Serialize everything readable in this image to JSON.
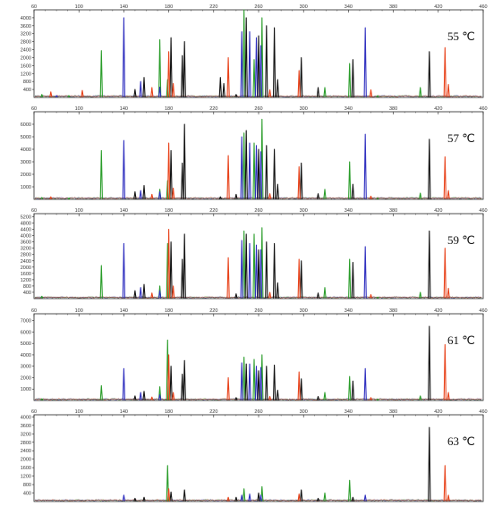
{
  "chart_data": [
    {
      "type": "line",
      "label": "55 ℃",
      "xlim": [
        60,
        460
      ],
      "ylim": [
        0,
        4400
      ],
      "x_ticks": [
        "60",
        "100",
        "140",
        "180",
        "220",
        "260",
        "300",
        "340",
        "380",
        "420",
        "460"
      ],
      "y_ticks": [
        "400",
        "800",
        "1200",
        "1600",
        "2000",
        "2400",
        "2800",
        "3200",
        "3600",
        "4000"
      ],
      "y_tick_values": [
        400,
        800,
        1200,
        1600,
        2000,
        2400,
        2800,
        3200,
        3600,
        4000
      ],
      "series": [
        {
          "color": "#2a9d2a",
          "peaks": [
            [
              67,
              150
            ],
            [
              91,
              90
            ],
            [
              120,
              2350
            ],
            [
              172,
              2900
            ],
            [
              179,
              900
            ],
            [
              247,
              4500
            ],
            [
              256,
              1900
            ],
            [
              263,
              4000
            ],
            [
              319,
              500
            ],
            [
              341,
              1700
            ],
            [
              366,
              90
            ],
            [
              404,
              500
            ]
          ]
        },
        {
          "color": "#2f2fbf",
          "peaks": [
            [
              80,
              90
            ],
            [
              140,
              4000
            ],
            [
              155,
              800
            ],
            [
              172,
              520
            ],
            [
              245,
              3300
            ],
            [
              252,
              3300
            ],
            [
              258,
              3000
            ],
            [
              262,
              2600
            ],
            [
              355,
              3500
            ]
          ]
        },
        {
          "color": "#111111",
          "peaks": [
            [
              150,
              400
            ],
            [
              158,
              1000
            ],
            [
              182,
              3000
            ],
            [
              192,
              2100
            ],
            [
              194,
              2800
            ],
            [
              226,
              1000
            ],
            [
              229,
              700
            ],
            [
              240,
              150
            ],
            [
              249,
              4000
            ],
            [
              260,
              3100
            ],
            [
              267,
              3600
            ],
            [
              274,
              3500
            ],
            [
              277,
              900
            ],
            [
              298,
              2000
            ],
            [
              313,
              500
            ],
            [
              344,
              1900
            ],
            [
              412,
              2300
            ]
          ]
        },
        {
          "color": "#e8421a",
          "peaks": [
            [
              75,
              280
            ],
            [
              103,
              350
            ],
            [
              165,
              500
            ],
            [
              180,
              2300
            ],
            [
              184,
              700
            ],
            [
              233,
              2000
            ],
            [
              270,
              380
            ],
            [
              296,
              1350
            ],
            [
              360,
              380
            ],
            [
              426,
              2500
            ],
            [
              429,
              650
            ]
          ]
        }
      ]
    },
    {
      "type": "line",
      "label": "57 ℃",
      "xlim": [
        60,
        460
      ],
      "ylim": [
        0,
        7000
      ],
      "x_ticks": [
        "60",
        "100",
        "140",
        "180",
        "220",
        "260",
        "300",
        "340",
        "380",
        "420",
        "460"
      ],
      "y_ticks": [
        "1000",
        "2000",
        "3000",
        "4000",
        "5000",
        "6000"
      ],
      "y_tick_values": [
        1000,
        2000,
        3000,
        4000,
        5000,
        6000
      ],
      "series": [
        {
          "color": "#2a9d2a",
          "peaks": [
            [
              67,
              150
            ],
            [
              91,
              80
            ],
            [
              120,
              3900
            ],
            [
              172,
              800
            ],
            [
              179,
              1500
            ],
            [
              247,
              5300
            ],
            [
              256,
              4500
            ],
            [
              263,
              6400
            ],
            [
              319,
              800
            ],
            [
              341,
              3000
            ],
            [
              366,
              90
            ],
            [
              404,
              500
            ]
          ]
        },
        {
          "color": "#2f2fbf",
          "peaks": [
            [
              140,
              4700
            ],
            [
              155,
              700
            ],
            [
              172,
              600
            ],
            [
              245,
              5000
            ],
            [
              252,
              4500
            ],
            [
              258,
              4300
            ],
            [
              262,
              3800
            ],
            [
              355,
              5200
            ]
          ]
        },
        {
          "color": "#111111",
          "peaks": [
            [
              150,
              600
            ],
            [
              158,
              1100
            ],
            [
              182,
              3900
            ],
            [
              192,
              2900
            ],
            [
              194,
              6000
            ],
            [
              226,
              200
            ],
            [
              240,
              400
            ],
            [
              249,
              5500
            ],
            [
              260,
              4000
            ],
            [
              267,
              4300
            ],
            [
              274,
              4000
            ],
            [
              277,
              1200
            ],
            [
              298,
              2900
            ],
            [
              313,
              450
            ],
            [
              344,
              1200
            ],
            [
              412,
              4800
            ]
          ]
        },
        {
          "color": "#e8421a",
          "peaks": [
            [
              75,
              200
            ],
            [
              165,
              400
            ],
            [
              180,
              4500
            ],
            [
              184,
              900
            ],
            [
              233,
              3500
            ],
            [
              270,
              450
            ],
            [
              296,
              2600
            ],
            [
              360,
              250
            ],
            [
              426,
              3400
            ],
            [
              429,
              700
            ]
          ]
        }
      ]
    },
    {
      "type": "line",
      "label": "59 ℃",
      "xlim": [
        60,
        460
      ],
      "ylim": [
        0,
        5400
      ],
      "x_ticks": [
        "60",
        "100",
        "140",
        "180",
        "220",
        "260",
        "300",
        "340",
        "380",
        "420",
        "460"
      ],
      "y_ticks": [
        "400",
        "800",
        "1200",
        "1600",
        "2000",
        "2400",
        "2800",
        "3200",
        "3600",
        "4000",
        "4400",
        "4800",
        "5200"
      ],
      "y_tick_values": [
        400,
        800,
        1200,
        1600,
        2000,
        2400,
        2800,
        3200,
        3600,
        4000,
        4400,
        4800,
        5200
      ],
      "series": [
        {
          "color": "#2a9d2a",
          "peaks": [
            [
              67,
              150
            ],
            [
              120,
              2100
            ],
            [
              172,
              800
            ],
            [
              179,
              3500
            ],
            [
              247,
              4300
            ],
            [
              256,
              4100
            ],
            [
              263,
              4500
            ],
            [
              319,
              700
            ],
            [
              341,
              2500
            ],
            [
              366,
              90
            ],
            [
              404,
              400
            ]
          ]
        },
        {
          "color": "#2f2fbf",
          "peaks": [
            [
              140,
              3500
            ],
            [
              155,
              700
            ],
            [
              172,
              500
            ],
            [
              245,
              3700
            ],
            [
              252,
              3500
            ],
            [
              258,
              3400
            ],
            [
              262,
              3100
            ],
            [
              355,
              3300
            ]
          ]
        },
        {
          "color": "#111111",
          "peaks": [
            [
              150,
              500
            ],
            [
              158,
              900
            ],
            [
              182,
              3600
            ],
            [
              192,
              2500
            ],
            [
              194,
              4100
            ],
            [
              240,
              300
            ],
            [
              249,
              4100
            ],
            [
              260,
              3100
            ],
            [
              267,
              3600
            ],
            [
              274,
              3500
            ],
            [
              277,
              1000
            ],
            [
              298,
              2400
            ],
            [
              313,
              350
            ],
            [
              344,
              2300
            ],
            [
              412,
              4300
            ]
          ]
        },
        {
          "color": "#e8421a",
          "peaks": [
            [
              165,
              350
            ],
            [
              180,
              4400
            ],
            [
              184,
              800
            ],
            [
              233,
              2600
            ],
            [
              270,
              400
            ],
            [
              296,
              2500
            ],
            [
              360,
              250
            ],
            [
              426,
              3200
            ],
            [
              429,
              650
            ]
          ]
        }
      ]
    },
    {
      "type": "line",
      "label": "61 ℃",
      "xlim": [
        60,
        460
      ],
      "ylim": [
        0,
        7600
      ],
      "x_ticks": [
        "60",
        "100",
        "140",
        "180",
        "220",
        "260",
        "300",
        "340",
        "380",
        "420",
        "460"
      ],
      "y_ticks": [
        "1000",
        "2000",
        "3000",
        "4000",
        "5000",
        "6000",
        "7000"
      ],
      "y_tick_values": [
        1000,
        2000,
        3000,
        4000,
        5000,
        6000,
        7000
      ],
      "series": [
        {
          "color": "#2a9d2a",
          "peaks": [
            [
              67,
              150
            ],
            [
              120,
              1300
            ],
            [
              172,
              1200
            ],
            [
              179,
              5300
            ],
            [
              247,
              3800
            ],
            [
              256,
              3600
            ],
            [
              263,
              4000
            ],
            [
              319,
              700
            ],
            [
              341,
              2100
            ],
            [
              366,
              90
            ],
            [
              404,
              400
            ]
          ]
        },
        {
          "color": "#2f2fbf",
          "peaks": [
            [
              140,
              2800
            ],
            [
              155,
              700
            ],
            [
              172,
              500
            ],
            [
              245,
              3300
            ],
            [
              252,
              3200
            ],
            [
              258,
              3000
            ],
            [
              262,
              2900
            ],
            [
              355,
              2800
            ]
          ]
        },
        {
          "color": "#111111",
          "peaks": [
            [
              150,
              400
            ],
            [
              158,
              800
            ],
            [
              182,
              3000
            ],
            [
              192,
              2300
            ],
            [
              194,
              3500
            ],
            [
              240,
              250
            ],
            [
              249,
              3200
            ],
            [
              260,
              2600
            ],
            [
              267,
              3000
            ],
            [
              274,
              3100
            ],
            [
              277,
              900
            ],
            [
              298,
              1900
            ],
            [
              313,
              350
            ],
            [
              344,
              1700
            ],
            [
              412,
              6500
            ]
          ]
        },
        {
          "color": "#e8421a",
          "peaks": [
            [
              165,
              300
            ],
            [
              180,
              4000
            ],
            [
              184,
              700
            ],
            [
              233,
              2000
            ],
            [
              270,
              350
            ],
            [
              296,
              2500
            ],
            [
              360,
              250
            ],
            [
              426,
              4900
            ],
            [
              429,
              700
            ]
          ]
        }
      ]
    },
    {
      "type": "line",
      "label": "63 ℃",
      "xlim": [
        60,
        460
      ],
      "ylim": [
        0,
        4100
      ],
      "x_ticks": [
        "60",
        "100",
        "140",
        "180",
        "220",
        "260",
        "300",
        "340",
        "380",
        "420",
        "460"
      ],
      "y_ticks": [
        "400",
        "800",
        "1200",
        "1600",
        "2000",
        "2400",
        "2800",
        "3200",
        "3600",
        "4000"
      ],
      "y_tick_values": [
        400,
        800,
        1200,
        1600,
        2000,
        2400,
        2800,
        3200,
        3600,
        4000
      ],
      "series": [
        {
          "color": "#2a9d2a",
          "peaks": [
            [
              179,
              1700
            ],
            [
              247,
              600
            ],
            [
              263,
              700
            ],
            [
              319,
              400
            ],
            [
              341,
              1000
            ]
          ]
        },
        {
          "color": "#2f2fbf",
          "peaks": [
            [
              140,
              300
            ],
            [
              245,
              300
            ],
            [
              252,
              350
            ],
            [
              262,
              300
            ],
            [
              355,
              300
            ]
          ]
        },
        {
          "color": "#111111",
          "peaks": [
            [
              150,
              150
            ],
            [
              158,
              200
            ],
            [
              182,
              450
            ],
            [
              194,
              550
            ],
            [
              240,
              200
            ],
            [
              260,
              400
            ],
            [
              298,
              550
            ],
            [
              313,
              150
            ],
            [
              344,
              200
            ],
            [
              412,
              3500
            ]
          ]
        },
        {
          "color": "#e8421a",
          "peaks": [
            [
              180,
              600
            ],
            [
              233,
              200
            ],
            [
              296,
              350
            ],
            [
              426,
              1700
            ],
            [
              429,
              300
            ]
          ]
        }
      ]
    }
  ]
}
